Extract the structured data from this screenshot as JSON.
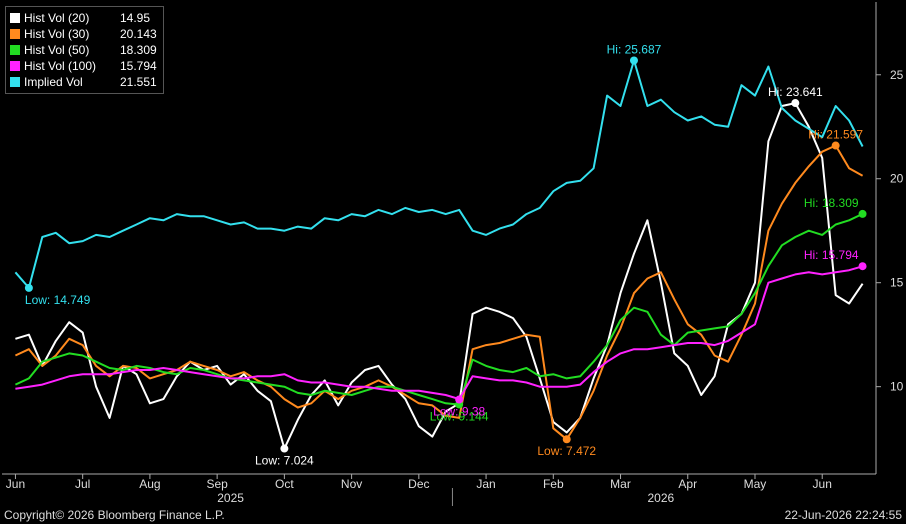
{
  "chart_data": {
    "type": "line",
    "ylim": [
      5.8,
      28.5
    ],
    "yticks": [
      10,
      15,
      20,
      25
    ],
    "grid": false,
    "legend_position": "top-left",
    "x_month_labels": [
      "Jun",
      "Jul",
      "Aug",
      "Sep",
      "Oct",
      "Nov",
      "Dec",
      "Jan",
      "Feb",
      "Mar",
      "Apr",
      "May",
      "Jun"
    ],
    "x_month_index": [
      0,
      1,
      2,
      3,
      4,
      5,
      6,
      7,
      8,
      9,
      10,
      11,
      12
    ],
    "x_years": [
      {
        "label": "2025",
        "at": 3.2
      },
      {
        "label": "2026",
        "at": 9.6
      }
    ],
    "year_divider_at": 6.5,
    "xlim": [
      -0.2,
      12.8
    ],
    "series": [
      {
        "name": "Hist Vol (20)",
        "last": "14.95",
        "color": "#ffffff",
        "x": [
          0,
          0.2,
          0.4,
          0.6,
          0.8,
          1.0,
          1.2,
          1.4,
          1.6,
          1.8,
          2.0,
          2.2,
          2.4,
          2.6,
          2.8,
          3.0,
          3.2,
          3.4,
          3.6,
          3.8,
          4.0,
          4.2,
          4.4,
          4.6,
          4.8,
          5.0,
          5.2,
          5.4,
          5.6,
          5.8,
          6.0,
          6.2,
          6.4,
          6.6,
          6.8,
          7.0,
          7.2,
          7.4,
          7.6,
          7.8,
          8.0,
          8.2,
          8.4,
          8.6,
          8.8,
          9.0,
          9.2,
          9.4,
          9.6,
          9.8,
          10.0,
          10.2,
          10.4,
          10.6,
          10.8,
          11.0,
          11.2,
          11.4,
          11.6,
          11.8,
          12.0,
          12.2,
          12.4,
          12.6
        ],
        "y": [
          12.3,
          12.5,
          11.0,
          12.2,
          13.1,
          12.6,
          10.0,
          8.5,
          11.0,
          10.6,
          9.2,
          9.4,
          10.5,
          11.2,
          10.8,
          11.0,
          10.1,
          10.6,
          9.8,
          9.3,
          7.02,
          8.4,
          9.6,
          10.3,
          9.1,
          10.2,
          10.8,
          11.0,
          10.1,
          9.4,
          8.1,
          7.6,
          8.8,
          9.2,
          13.5,
          13.8,
          13.6,
          13.3,
          12.4,
          10.4,
          8.3,
          7.8,
          8.5,
          10.4,
          12.0,
          14.5,
          16.4,
          18.0,
          15.0,
          11.6,
          11.0,
          9.6,
          10.5,
          13.0,
          13.5,
          15.0,
          21.8,
          23.5,
          23.64,
          22.5,
          21.0,
          14.4,
          14.0,
          14.95
        ]
      },
      {
        "name": "Hist Vol (30)",
        "last": "20.143",
        "color": "#ff8a1e",
        "x": [
          0,
          0.2,
          0.4,
          0.6,
          0.8,
          1.0,
          1.2,
          1.4,
          1.6,
          1.8,
          2.0,
          2.2,
          2.4,
          2.6,
          2.8,
          3.0,
          3.2,
          3.4,
          3.6,
          3.8,
          4.0,
          4.2,
          4.4,
          4.6,
          4.8,
          5.0,
          5.2,
          5.4,
          5.6,
          5.8,
          6.0,
          6.2,
          6.4,
          6.6,
          6.8,
          7.0,
          7.2,
          7.4,
          7.6,
          7.8,
          8.0,
          8.2,
          8.4,
          8.6,
          8.8,
          9.0,
          9.2,
          9.4,
          9.6,
          9.8,
          10.0,
          10.2,
          10.4,
          10.6,
          10.8,
          11.0,
          11.2,
          11.4,
          11.6,
          11.8,
          12.0,
          12.2,
          12.4,
          12.6
        ],
        "y": [
          11.5,
          11.8,
          11.0,
          11.5,
          12.3,
          12.0,
          11.0,
          10.5,
          11.0,
          10.9,
          10.4,
          10.6,
          10.8,
          11.2,
          11.0,
          10.8,
          10.5,
          10.7,
          10.3,
          10.0,
          9.4,
          9.0,
          9.2,
          9.8,
          9.4,
          9.8,
          10.0,
          10.3,
          10.0,
          9.6,
          9.2,
          9.1,
          8.6,
          8.5,
          11.8,
          12.0,
          12.1,
          12.3,
          12.5,
          12.4,
          8.0,
          7.47,
          8.5,
          9.8,
          11.5,
          12.8,
          14.5,
          15.2,
          15.5,
          14.2,
          13.0,
          12.5,
          11.5,
          11.2,
          12.5,
          14.0,
          17.5,
          18.8,
          19.8,
          20.6,
          21.3,
          21.6,
          20.5,
          20.14
        ]
      },
      {
        "name": "Hist Vol (50)",
        "last": "18.309",
        "color": "#22dd22",
        "x": [
          0,
          0.2,
          0.4,
          0.6,
          0.8,
          1.0,
          1.2,
          1.4,
          1.6,
          1.8,
          2.0,
          2.2,
          2.4,
          2.6,
          2.8,
          3.0,
          3.2,
          3.4,
          3.6,
          3.8,
          4.0,
          4.2,
          4.4,
          4.6,
          4.8,
          5.0,
          5.2,
          5.4,
          5.6,
          5.8,
          6.0,
          6.2,
          6.4,
          6.6,
          6.8,
          7.0,
          7.2,
          7.4,
          7.6,
          7.8,
          8.0,
          8.2,
          8.4,
          8.6,
          8.8,
          9.0,
          9.2,
          9.4,
          9.6,
          9.8,
          10.0,
          10.2,
          10.4,
          10.6,
          10.8,
          11.0,
          11.2,
          11.4,
          11.6,
          11.8,
          12.0,
          12.2,
          12.4,
          12.6
        ],
        "y": [
          10.1,
          10.4,
          11.2,
          11.4,
          11.6,
          11.5,
          11.2,
          10.9,
          10.8,
          11.0,
          10.9,
          10.7,
          10.6,
          10.9,
          10.8,
          10.6,
          10.4,
          10.3,
          10.2,
          10.1,
          10.0,
          9.7,
          9.6,
          9.8,
          9.7,
          9.6,
          9.8,
          10.0,
          10.0,
          9.8,
          9.6,
          9.4,
          9.2,
          9.14,
          11.3,
          11.0,
          10.8,
          10.7,
          10.9,
          10.5,
          10.6,
          10.4,
          10.5,
          11.2,
          12.0,
          13.2,
          13.8,
          13.6,
          12.5,
          12.0,
          12.6,
          12.7,
          12.8,
          12.9,
          13.5,
          14.5,
          15.8,
          16.8,
          17.2,
          17.5,
          17.3,
          17.8,
          18.0,
          18.31
        ]
      },
      {
        "name": "Hist Vol (100)",
        "last": "15.794",
        "color": "#ff22ff",
        "x": [
          0,
          0.2,
          0.4,
          0.6,
          0.8,
          1.0,
          1.2,
          1.4,
          1.6,
          1.8,
          2.0,
          2.2,
          2.4,
          2.6,
          2.8,
          3.0,
          3.2,
          3.4,
          3.6,
          3.8,
          4.0,
          4.2,
          4.4,
          4.6,
          4.8,
          5.0,
          5.2,
          5.4,
          5.6,
          5.8,
          6.0,
          6.2,
          6.4,
          6.6,
          6.8,
          7.0,
          7.2,
          7.4,
          7.6,
          7.8,
          8.0,
          8.2,
          8.4,
          8.6,
          8.8,
          9.0,
          9.2,
          9.4,
          9.6,
          9.8,
          10.0,
          10.2,
          10.4,
          10.6,
          10.8,
          11.0,
          11.2,
          11.4,
          11.6,
          11.8,
          12.0,
          12.2,
          12.4,
          12.6
        ],
        "y": [
          9.9,
          10.0,
          10.1,
          10.3,
          10.5,
          10.6,
          10.6,
          10.6,
          10.7,
          10.8,
          10.8,
          10.9,
          10.8,
          10.7,
          10.6,
          10.5,
          10.4,
          10.4,
          10.5,
          10.5,
          10.6,
          10.3,
          10.2,
          10.2,
          10.1,
          10.0,
          10.0,
          9.9,
          9.8,
          9.8,
          9.8,
          9.7,
          9.6,
          9.4,
          10.5,
          10.4,
          10.3,
          10.3,
          10.2,
          10.0,
          10.0,
          10.0,
          10.1,
          10.7,
          11.2,
          11.6,
          11.8,
          11.8,
          11.9,
          12.0,
          12.1,
          12.1,
          12.0,
          12.2,
          12.6,
          13.0,
          15.0,
          15.2,
          15.4,
          15.5,
          15.4,
          15.5,
          15.6,
          15.79
        ]
      },
      {
        "name": "Implied Vol",
        "last": "21.551",
        "color": "#33e0ee",
        "x": [
          0,
          0.2,
          0.4,
          0.6,
          0.8,
          1.0,
          1.2,
          1.4,
          1.6,
          1.8,
          2.0,
          2.2,
          2.4,
          2.6,
          2.8,
          3.0,
          3.2,
          3.4,
          3.6,
          3.8,
          4.0,
          4.2,
          4.4,
          4.6,
          4.8,
          5.0,
          5.2,
          5.4,
          5.6,
          5.8,
          6.0,
          6.2,
          6.4,
          6.6,
          6.8,
          7.0,
          7.2,
          7.4,
          7.6,
          7.8,
          8.0,
          8.2,
          8.4,
          8.6,
          8.8,
          9.0,
          9.2,
          9.4,
          9.6,
          9.8,
          10.0,
          10.2,
          10.4,
          10.6,
          10.8,
          11.0,
          11.2,
          11.4,
          11.6,
          11.8,
          12.0,
          12.2,
          12.4,
          12.6
        ],
        "y": [
          15.5,
          14.75,
          17.2,
          17.4,
          16.9,
          17.0,
          17.3,
          17.2,
          17.5,
          17.8,
          18.1,
          18.0,
          18.3,
          18.2,
          18.2,
          18.0,
          17.8,
          17.9,
          17.6,
          17.6,
          17.5,
          17.7,
          17.6,
          18.1,
          18.0,
          18.3,
          18.2,
          18.5,
          18.3,
          18.6,
          18.4,
          18.5,
          18.3,
          18.5,
          17.5,
          17.3,
          17.6,
          17.8,
          18.3,
          18.6,
          19.4,
          19.8,
          19.9,
          20.5,
          24.0,
          23.5,
          25.69,
          23.5,
          23.8,
          23.2,
          22.8,
          23.0,
          22.6,
          22.5,
          24.5,
          24.0,
          25.4,
          23.4,
          22.8,
          22.4,
          22.0,
          23.5,
          22.8,
          21.55
        ]
      }
    ],
    "annotations": [
      {
        "text": "Hi: 25.687",
        "series": 4,
        "x": 9.2,
        "y": 25.687
      },
      {
        "text": "Low: 14.749",
        "series": 4,
        "x": 0.2,
        "y": 14.749
      },
      {
        "text": "Hi: 23.641",
        "series": 0,
        "x": 11.6,
        "y": 23.641
      },
      {
        "text": "Low: 7.024",
        "series": 0,
        "x": 4.0,
        "y": 7.024
      },
      {
        "text": "Hi: 21.597",
        "series": 1,
        "x": 12.2,
        "y": 21.597
      },
      {
        "text": "Low: 7.472",
        "series": 1,
        "x": 8.2,
        "y": 7.472
      },
      {
        "text": "Hi: 18.309",
        "series": 2,
        "x": 12.6,
        "y": 18.309
      },
      {
        "text": "Low: 9.144",
        "series": 2,
        "x": 6.6,
        "y": 9.144
      },
      {
        "text": "Hi: 15.794",
        "series": 3,
        "x": 12.6,
        "y": 15.794
      },
      {
        "text": "Low: 9.38",
        "series": 3,
        "x": 6.6,
        "y": 9.38
      }
    ]
  },
  "footer": {
    "copyright": "Copyright© 2026 Bloomberg Finance L.P.",
    "timestamp": "22-Jun-2026 22:24:55"
  }
}
